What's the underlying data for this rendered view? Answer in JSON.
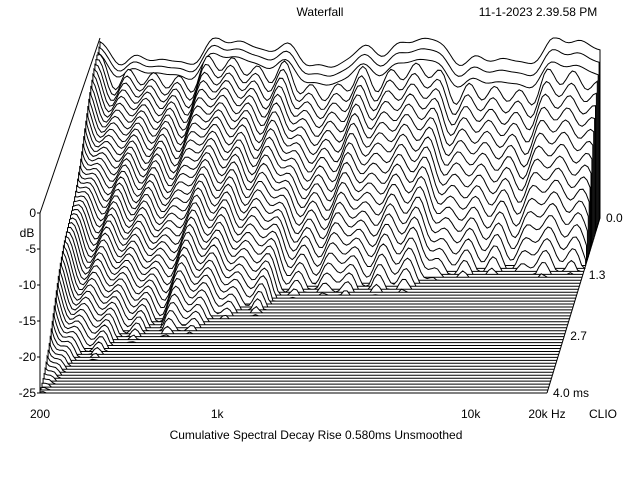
{
  "header": {
    "title": "Waterfall",
    "timestamp": "11-1-2023 2.39.58 PM"
  },
  "footer": {
    "caption": "Cumulative Spectral Decay   Rise 0.580ms   Unsmoothed",
    "brand": "CLIO"
  },
  "chart_data": {
    "type": "waterfall",
    "title": "Waterfall",
    "subtitle": "Cumulative Spectral Decay   Rise 0.580ms   Unsmoothed",
    "x_axis": {
      "scale": "log",
      "range": [
        200,
        20000
      ],
      "ticks": [
        {
          "value": 200,
          "label": "200"
        },
        {
          "value": 1000,
          "label": "1k"
        },
        {
          "value": 10000,
          "label": "10k"
        },
        {
          "value": 20000,
          "label": "20k Hz"
        }
      ]
    },
    "y_axis": {
      "unit": "dB",
      "range": [
        -25,
        0
      ],
      "ticks": [
        {
          "value": 0,
          "label": "0"
        },
        {
          "value": -5,
          "label": "-5"
        },
        {
          "value": -10,
          "label": "-10"
        },
        {
          "value": -15,
          "label": "-15"
        },
        {
          "value": -20,
          "label": "-20"
        },
        {
          "value": -25,
          "label": "-25"
        }
      ]
    },
    "z_axis": {
      "unit": "ms",
      "range": [
        0.0,
        4.0
      ],
      "ticks": [
        {
          "value": 0.0,
          "label": "0.0"
        },
        {
          "value": 1.3,
          "label": "1.3"
        },
        {
          "value": 2.7,
          "label": "2.7"
        },
        {
          "value": 4.0,
          "label": "4.0  ms"
        }
      ]
    },
    "slice_count": 60,
    "rise_ms": 0.58,
    "smoothing": "Unsmoothed",
    "grid": false,
    "legend": "none"
  }
}
